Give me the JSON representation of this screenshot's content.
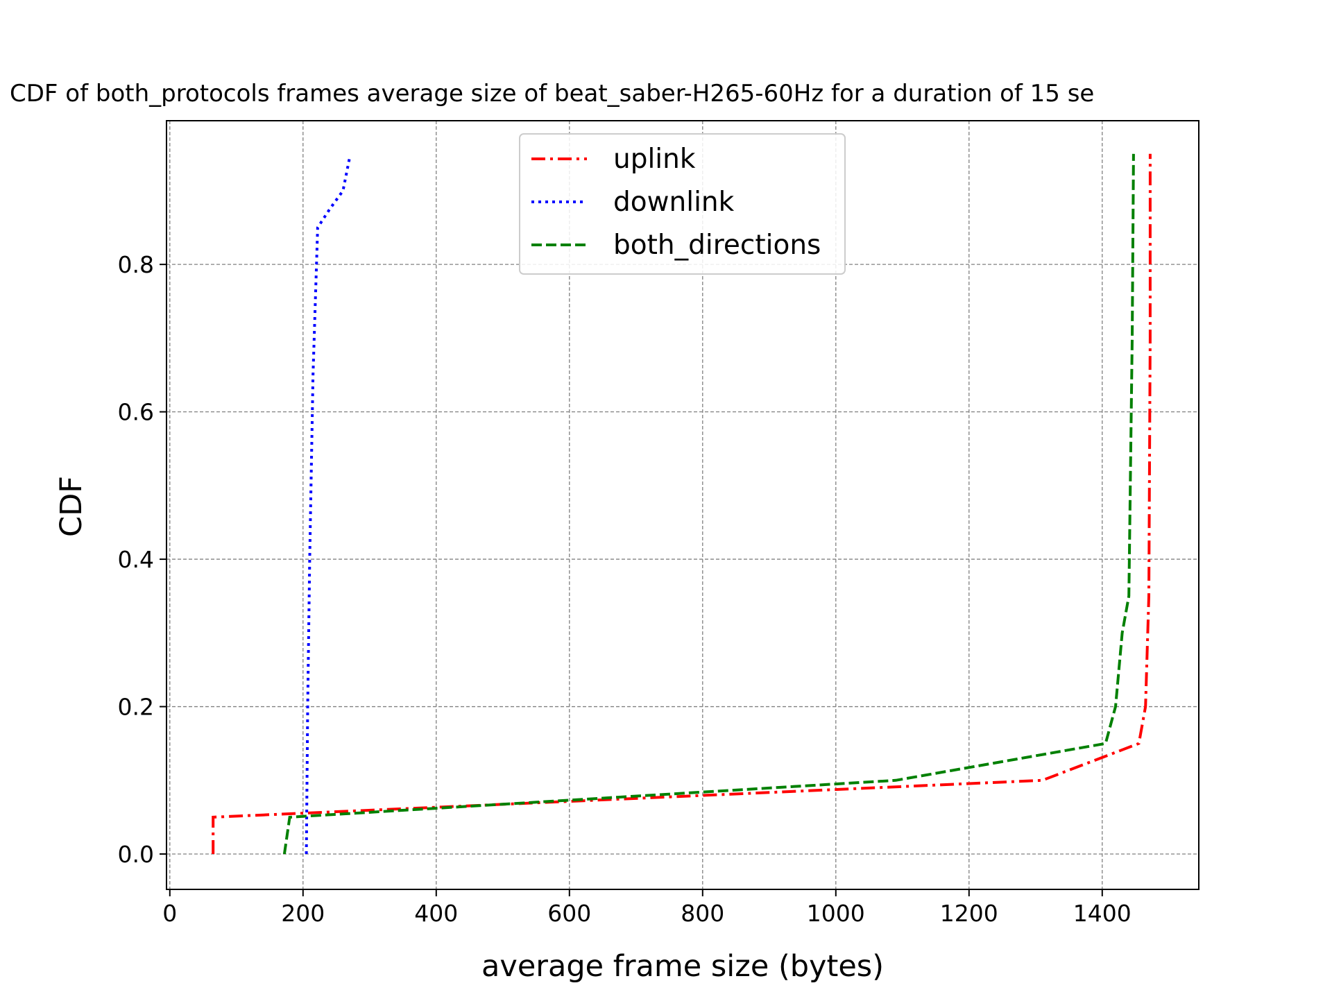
{
  "chart_data": {
    "type": "line",
    "title": "CDF of both_protocols frames average size of beat_saber-H265-60Hz for a duration of 15 se",
    "xlabel": "average frame size (bytes)",
    "ylabel": "CDF",
    "xlim": [
      -5,
      1545
    ],
    "ylim": [
      -0.048,
      0.995
    ],
    "xticks": [
      0,
      200,
      400,
      600,
      800,
      1000,
      1200,
      1400
    ],
    "xtick_labels": [
      "0",
      "200",
      "400",
      "600",
      "800",
      "1000",
      "1200",
      "1400"
    ],
    "yticks": [
      0.0,
      0.2,
      0.4,
      0.6,
      0.8
    ],
    "ytick_labels": [
      "0.0",
      "0.2",
      "0.4",
      "0.6",
      "0.8"
    ],
    "grid": true,
    "legend_position": "upper-center",
    "series": [
      {
        "name": "uplink",
        "color": "#ff0000",
        "style": "dashdot",
        "x": [
          65,
          65,
          1310,
          1455,
          1465,
          1470,
          1472,
          1472
        ],
        "y": [
          0.0,
          0.05,
          0.1,
          0.15,
          0.2,
          0.35,
          0.7,
          0.95
        ]
      },
      {
        "name": "downlink",
        "color": "#0000ff",
        "style": "dotted",
        "x": [
          205,
          207,
          210,
          215,
          222,
          240,
          260,
          270
        ],
        "y": [
          0.0,
          0.2,
          0.4,
          0.65,
          0.85,
          0.875,
          0.9,
          0.945
        ]
      },
      {
        "name": "both_directions",
        "color": "#008000",
        "style": "dashed",
        "x": [
          172,
          180,
          1090,
          1405,
          1420,
          1430,
          1440,
          1445,
          1447
        ],
        "y": [
          0.0,
          0.05,
          0.1,
          0.15,
          0.2,
          0.3,
          0.35,
          0.7,
          0.95
        ]
      }
    ]
  }
}
